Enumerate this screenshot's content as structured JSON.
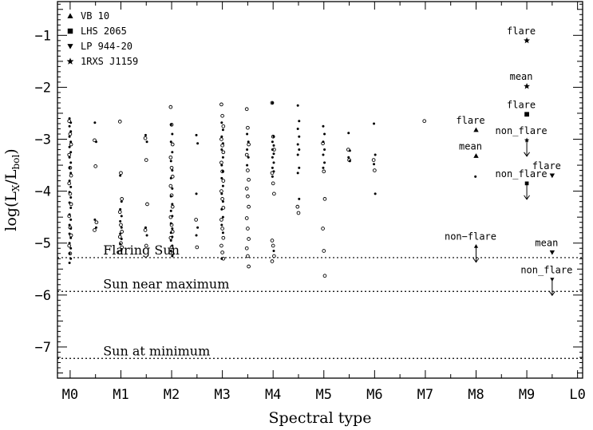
{
  "chart_data": {
    "type": "scatter",
    "xlabel": "Spectral type",
    "ylabel_main": "log(L",
    "ylabel_sub1": "X",
    "ylabel_mid": "/L",
    "ylabel_sub2": "bol",
    "ylabel_end": ")",
    "xlim": [
      -0.25,
      10.1
    ],
    "ylim": [
      -7.6,
      -0.35
    ],
    "x_ticks": [
      {
        "value": 0,
        "label": "M0"
      },
      {
        "value": 1,
        "label": "M1"
      },
      {
        "value": 2,
        "label": "M2"
      },
      {
        "value": 3,
        "label": "M3"
      },
      {
        "value": 4,
        "label": "M4"
      },
      {
        "value": 5,
        "label": "M5"
      },
      {
        "value": 6,
        "label": "M6"
      },
      {
        "value": 7,
        "label": "M7"
      },
      {
        "value": 8,
        "label": "M8"
      },
      {
        "value": 9,
        "label": "M9"
      },
      {
        "value": 10,
        "label": "L0"
      }
    ],
    "y_ticks": [
      {
        "value": -1,
        "label": "−1"
      },
      {
        "value": -2,
        "label": "−2"
      },
      {
        "value": -3,
        "label": "−3"
      },
      {
        "value": -4,
        "label": "−4"
      },
      {
        "value": -5,
        "label": "−5"
      },
      {
        "value": -6,
        "label": "−6"
      },
      {
        "value": -7,
        "label": "−7"
      }
    ],
    "reference_lines": [
      {
        "y": -5.28,
        "label": "Flaring Sun"
      },
      {
        "y": -5.93,
        "label": "Sun near maximum"
      },
      {
        "y": -7.22,
        "label": "Sun at minimum"
      }
    ],
    "legend": [
      {
        "marker": "triangle-up",
        "label": "VB 10"
      },
      {
        "marker": "square",
        "label": "LHS 2065"
      },
      {
        "marker": "triangle-down",
        "label": "LP 944-20"
      },
      {
        "marker": "star",
        "label": "1RXS J1159"
      }
    ],
    "legend_position": "top-left",
    "named_points": [
      {
        "series": "VB 10",
        "marker": "triangle-up",
        "x": 8.0,
        "y": -2.82,
        "label": "flare"
      },
      {
        "series": "VB 10",
        "marker": "triangle-up",
        "x": 8.0,
        "y": -3.32,
        "label": "mean"
      },
      {
        "series": "VB 10",
        "marker": "triangle-up",
        "x": 8.0,
        "y": -5.06,
        "label": "non−flare",
        "upper_limit": true
      },
      {
        "series": "LHS 2065",
        "marker": "square",
        "x": 9.0,
        "y": -2.52,
        "label": "flare"
      },
      {
        "series": "LHS 2065",
        "marker": "square",
        "x": 9.0,
        "y": -3.85,
        "label": "non_flare",
        "upper_limit": true
      },
      {
        "series": "LP 944-20",
        "marker": "triangle-down",
        "x": 9.5,
        "y": -3.7,
        "label": "flare"
      },
      {
        "series": "LP 944-20",
        "marker": "triangle-down",
        "x": 9.5,
        "y": -5.18,
        "label": "mean"
      },
      {
        "series": "LP 944-20",
        "marker": "triangle-down",
        "x": 9.5,
        "y": -5.7,
        "label": "non_flare",
        "upper_limit": true
      },
      {
        "series": "1RXS J1159",
        "marker": "star",
        "x": 9.0,
        "y": -1.1,
        "label": "flare"
      },
      {
        "series": "1RXS J1159",
        "marker": "star",
        "x": 9.0,
        "y": -1.98,
        "label": "mean"
      },
      {
        "series": "1RXS J1159",
        "marker": "star",
        "x": 9.0,
        "y": -3.02,
        "label": "non_flare",
        "upper_limit": true
      }
    ],
    "field_stars_filled": [
      {
        "x": 0.0,
        "y": [
          -2.6,
          -2.68,
          -2.75,
          -2.85,
          -2.95,
          -3.05,
          -3.15,
          -3.25,
          -3.35,
          -3.45,
          -3.55,
          -3.65,
          -3.8,
          -3.92,
          -4.02,
          -4.12,
          -4.22,
          -4.32,
          -4.45,
          -4.55,
          -4.65,
          -4.72,
          -4.82,
          -4.9,
          -5.0,
          -5.1,
          -5.2,
          -5.3,
          -5.38
        ]
      },
      {
        "x": 0.5,
        "y": [
          -2.68,
          -3.05,
          -4.55,
          -4.7
        ]
      },
      {
        "x": 1.0,
        "y": [
          -3.7,
          -4.2,
          -4.35,
          -4.48,
          -4.58,
          -4.7,
          -4.82,
          -4.92,
          -5.02,
          -5.12
        ]
      },
      {
        "x": 1.5,
        "y": [
          -2.92,
          -3.05,
          -4.7,
          -4.85
        ]
      },
      {
        "x": 2.0,
        "y": [
          -2.72,
          -2.9,
          -3.05,
          -3.25,
          -3.42,
          -3.6,
          -3.75,
          -3.95,
          -4.1,
          -4.25,
          -4.38,
          -4.48,
          -4.62,
          -4.72,
          -4.8,
          -4.88,
          -4.95,
          -5.05,
          -5.15,
          -5.25
        ]
      },
      {
        "x": 2.5,
        "y": [
          -2.92,
          -3.08,
          -4.05,
          -4.7,
          -4.85
        ]
      },
      {
        "x": 3.0,
        "y": [
          -2.68,
          -2.82,
          -2.95,
          -3.08,
          -3.2,
          -3.35,
          -3.5,
          -3.62,
          -3.75,
          -3.9,
          -4.05,
          -4.2,
          -4.35,
          -4.5,
          -4.65,
          -4.8,
          -5.3
        ]
      },
      {
        "x": 3.5,
        "y": [
          -2.9,
          -3.05,
          -3.2,
          -3.35,
          -3.5
        ]
      },
      {
        "x": 4.0,
        "y": [
          -2.3,
          -2.95,
          -3.05,
          -3.12,
          -3.2,
          -3.28,
          -3.35,
          -3.45,
          -3.55,
          -3.62,
          -3.72,
          -5.15
        ]
      },
      {
        "x": 4.5,
        "y": [
          -2.35,
          -2.65,
          -2.8,
          -2.95,
          -3.1,
          -3.2,
          -3.3,
          -3.55,
          -3.65,
          -4.15
        ]
      },
      {
        "x": 5.0,
        "y": [
          -2.75,
          -2.9,
          -3.05,
          -3.2,
          -3.3,
          -3.45,
          -3.55
        ]
      },
      {
        "x": 5.5,
        "y": [
          -2.88,
          -3.22,
          -3.35,
          -3.42
        ]
      },
      {
        "x": 6.0,
        "y": [
          -2.7,
          -3.3,
          -3.48,
          -4.05
        ]
      },
      {
        "x": 8.0,
        "y": [
          -3.72
        ]
      }
    ],
    "field_stars_open": [
      {
        "x": 0.0,
        "y": [
          -2.65,
          -2.9,
          -3.1,
          -3.3,
          -3.55,
          -3.7,
          -3.85,
          -4.05,
          -4.25,
          -4.48,
          -4.7,
          -4.85,
          -5.05,
          -5.2
        ]
      },
      {
        "x": 0.5,
        "y": [
          -3.02,
          -3.52,
          -4.6,
          -4.75
        ]
      },
      {
        "x": 1.0,
        "y": [
          -2.66,
          -3.65,
          -4.15,
          -4.4,
          -4.65,
          -4.78,
          -4.88,
          -5.0,
          -5.08,
          -5.18
        ]
      },
      {
        "x": 1.5,
        "y": [
          -2.98,
          -3.4,
          -4.25,
          -4.75,
          -5.05
        ]
      },
      {
        "x": 2.0,
        "y": [
          -2.38,
          -2.72,
          -3.1,
          -3.35,
          -3.55,
          -3.72,
          -3.9,
          -4.08,
          -4.3,
          -4.5,
          -4.65,
          -4.78,
          -4.9,
          -5.08,
          -5.2
        ]
      },
      {
        "x": 2.5,
        "y": [
          -4.55,
          -5.08
        ]
      },
      {
        "x": 3.0,
        "y": [
          -2.33,
          -2.55,
          -2.75,
          -3.0,
          -3.12,
          -3.25,
          -3.45,
          -3.62,
          -3.8,
          -4.0,
          -4.15,
          -4.32,
          -4.55,
          -4.72,
          -4.9,
          -5.05,
          -5.18,
          -5.3
        ]
      },
      {
        "x": 3.5,
        "y": [
          -2.42,
          -2.78,
          -3.1,
          -3.3,
          -3.6,
          -3.78,
          -3.95,
          -4.1,
          -4.3,
          -4.52,
          -4.72,
          -4.92,
          -5.1,
          -5.25,
          -5.45
        ]
      },
      {
        "x": 4.0,
        "y": [
          -2.3,
          -2.95,
          -3.2,
          -3.65,
          -3.85,
          -4.05,
          -4.95,
          -5.05,
          -5.25,
          -5.35
        ]
      },
      {
        "x": 4.5,
        "y": [
          -4.3,
          -4.42
        ]
      },
      {
        "x": 5.0,
        "y": [
          -3.08,
          -3.62,
          -4.15,
          -4.72,
          -5.15,
          -5.63
        ]
      },
      {
        "x": 5.5,
        "y": [
          -3.2,
          -3.4
        ]
      },
      {
        "x": 6.0,
        "y": [
          -3.4,
          -3.6
        ]
      },
      {
        "x": 7.0,
        "y": [
          -2.65
        ]
      }
    ]
  }
}
